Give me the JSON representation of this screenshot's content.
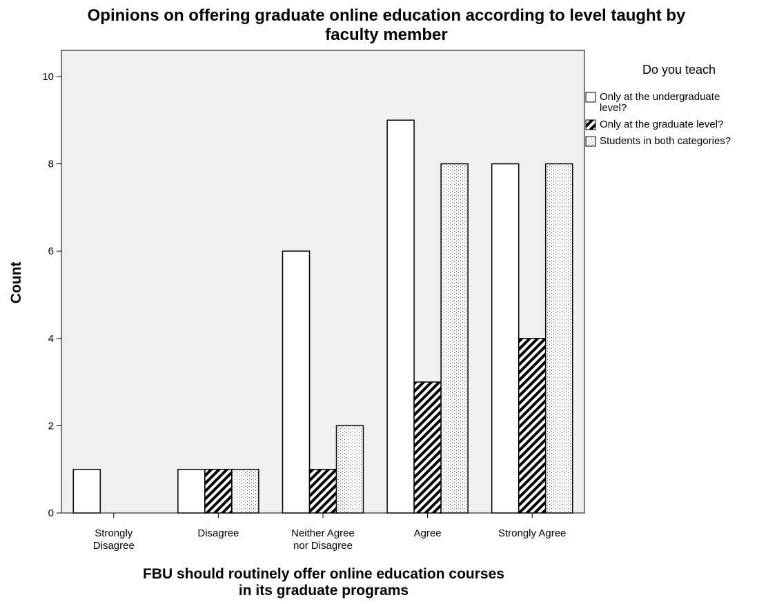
{
  "chart_data": {
    "type": "bar",
    "title": [
      "Opinions on offering graduate online education according to level taught by",
      "faculty member"
    ],
    "xlabel": [
      "FBU should routinely offer online education courses",
      "in its graduate programs"
    ],
    "ylabel": "Count",
    "categories": [
      [
        "Strongly",
        "Disagree"
      ],
      [
        "Disagree"
      ],
      [
        "Neither Agree",
        "nor Disagree"
      ],
      [
        "Agree"
      ],
      [
        "Strongly Agree"
      ]
    ],
    "series": [
      {
        "name": [
          "Only at the undergraduate",
          "level?"
        ],
        "pattern": "plain",
        "values": [
          1,
          1,
          6,
          9,
          8
        ]
      },
      {
        "name": [
          "Only at the graduate level?"
        ],
        "pattern": "diagonal-hatch",
        "values": [
          0,
          1,
          1,
          3,
          4
        ]
      },
      {
        "name": [
          "Students in both categories?"
        ],
        "pattern": "dotted",
        "values": [
          0,
          1,
          2,
          8,
          8
        ]
      }
    ],
    "ylim": [
      0,
      10.6
    ],
    "yticks": [
      "0",
      "2",
      "4",
      "6",
      "8",
      "10"
    ],
    "grid": false,
    "legend": {
      "title": "Do you teach",
      "placement": "right"
    },
    "colors": {
      "plot_background": "#f0f0f0",
      "bar_fill": "#ffffff",
      "stroke": "#000000"
    }
  }
}
